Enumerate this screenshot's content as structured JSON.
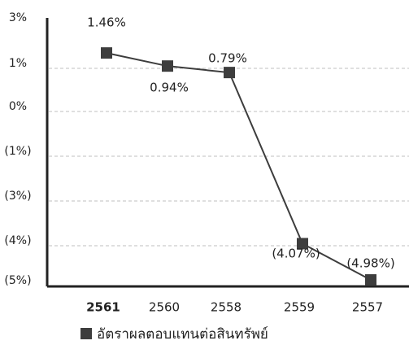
{
  "chart_data": {
    "type": "line",
    "categories": [
      "2561",
      "2560",
      "2558",
      "2559",
      "2557"
    ],
    "series": [
      {
        "name": "อัตราผลตอบแทนต่อสินทรัพย์",
        "values": [
          1.46,
          0.94,
          0.79,
          -4.07,
          -4.98
        ],
        "labels": [
          "1.46%",
          "0.94%",
          "0.79%",
          "(4.07%)",
          "(4.98%)"
        ]
      }
    ],
    "y_tick_labels": [
      "3%",
      "1%",
      "0%",
      "(1%)",
      "(3%)",
      "(4%)",
      "(5%)"
    ],
    "bold_categories": [
      "2561"
    ],
    "grid": true,
    "colors": {
      "series": "#3d3d3d",
      "grid": "#bfbfbf",
      "axis": "#222222"
    }
  }
}
